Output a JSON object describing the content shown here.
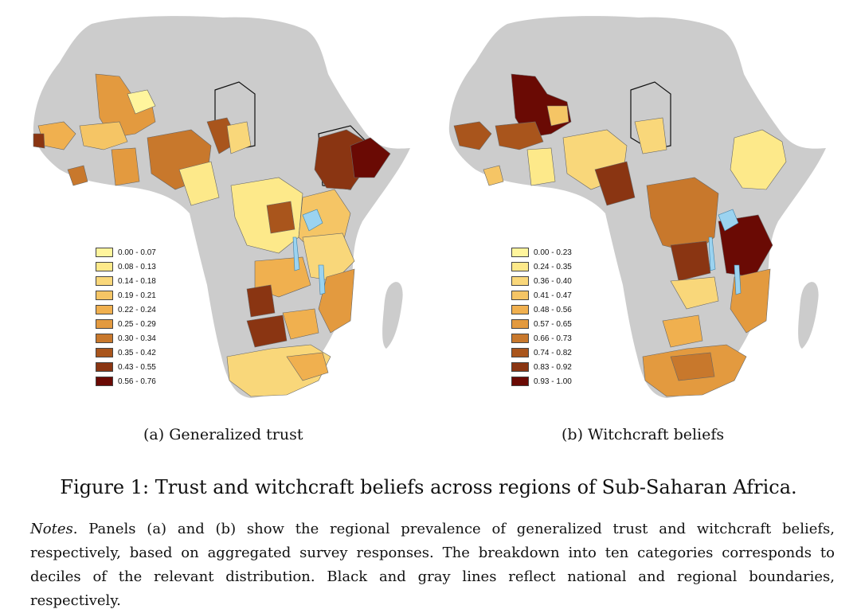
{
  "panels": [
    {
      "id": "a",
      "caption": "(a) Generalized trust",
      "legend": [
        "0.00 - 0.07",
        "0.08 - 0.13",
        "0.14 - 0.18",
        "0.19 - 0.21",
        "0.22 - 0.24",
        "0.25 - 0.29",
        "0.30 - 0.34",
        "0.35 - 0.42",
        "0.43 - 0.55",
        "0.56 - 0.76"
      ]
    },
    {
      "id": "b",
      "caption": "(b) Witchcraft beliefs",
      "legend": [
        "0.00 - 0.23",
        "0.24 - 0.35",
        "0.36 - 0.40",
        "0.41 - 0.47",
        "0.48 - 0.56",
        "0.57 - 0.65",
        "0.66 - 0.73",
        "0.74 - 0.82",
        "0.83 - 0.92",
        "0.93 - 1.00"
      ]
    }
  ],
  "legend_colors": [
    "#fff59d",
    "#fde98a",
    "#f9d77a",
    "#f5c565",
    "#f0b04f",
    "#e39a3f",
    "#c8782c",
    "#a9551c",
    "#8a3512",
    "#6a0a04"
  ],
  "land_color": "#cccccc",
  "water_color": "#9bd3f0",
  "figure_title": "Figure 1: Trust and witchcraft beliefs across regions of Sub-Saharan Africa.",
  "notes": {
    "label": "Notes",
    "text": ". Panels (a) and (b) show the regional prevalence of generalized trust and witchcraft beliefs, respectively, based on aggregated survey responses. The breakdown into ten categories corresponds to deciles of the relevant distribution. Black and gray lines reflect national and regional boundaries, respectively."
  }
}
